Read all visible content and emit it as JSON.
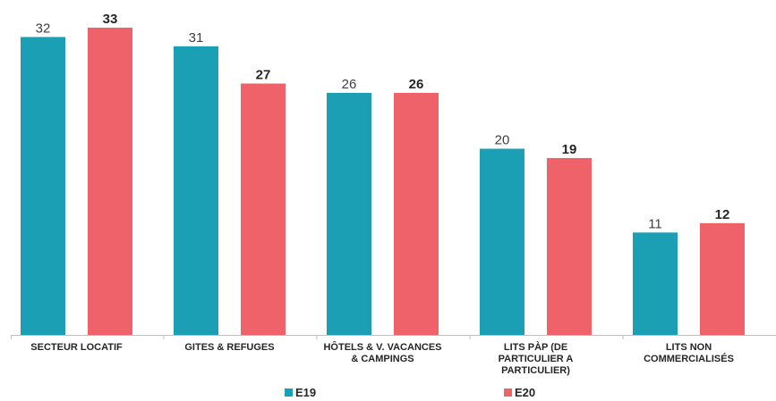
{
  "chart_data": {
    "type": "bar",
    "categories": [
      "SECTEUR LOCATIF",
      "GITES & REFUGES",
      "HÔTELS & V. VACANCES\n& CAMPINGS",
      "LITS PÀP (DE\nPARTICULIER A\nPARTICULIER)",
      "LITS NON\nCOMMERCIALISÉS"
    ],
    "series": [
      {
        "name": "E19",
        "color": "#1a9fb5",
        "values": [
          32,
          31,
          26,
          20,
          11
        ]
      },
      {
        "name": "E20",
        "color": "#f0626a",
        "values": [
          33,
          27,
          26,
          19,
          12
        ]
      }
    ]
  }
}
